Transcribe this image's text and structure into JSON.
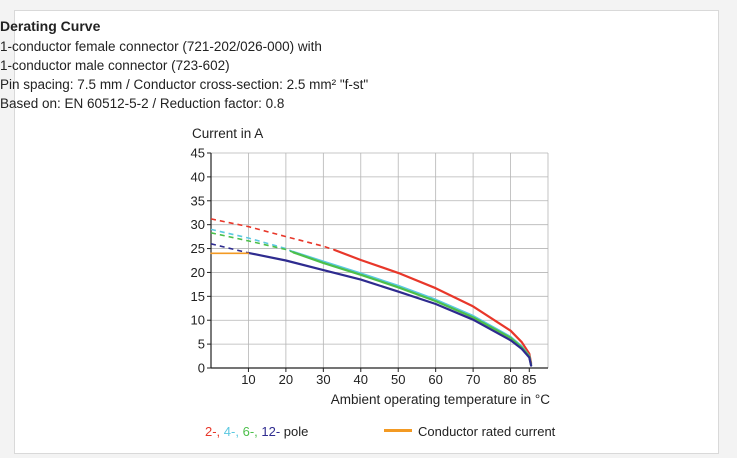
{
  "chart_data": {
    "type": "line",
    "title": "Derating Curve",
    "subtitle_lines": [
      "1-conductor female connector (721-202/026-000) with",
      "1-conductor male connector (723-602)",
      "Pin spacing: 7.5 mm / Conductor cross-section: 2.5 mm² \"f-st\"",
      "Based on: EN 60512-5-2 / Reduction factor: 0.8"
    ],
    "ylabel": "Current in A",
    "xlabel": "Ambient operating temperature in °C",
    "xlim": [
      0,
      90
    ],
    "ylim": [
      0,
      45
    ],
    "x_ticks": [
      10,
      20,
      30,
      40,
      50,
      60,
      70,
      80,
      85
    ],
    "y_ticks": [
      0,
      5,
      10,
      15,
      20,
      25,
      30,
      35,
      40,
      45
    ],
    "grid": true,
    "series": [
      {
        "name": "2-",
        "color": "#e8372a",
        "dashed": {
          "x": [
            0,
            10,
            20,
            30,
            33
          ],
          "y": [
            31.2,
            29.6,
            27.5,
            25.5,
            24.7
          ]
        },
        "x": [
          33,
          40,
          50,
          60,
          70,
          80,
          83,
          85,
          85.5
        ],
        "y": [
          24.7,
          22.6,
          19.9,
          16.7,
          12.9,
          7.8,
          5.4,
          3.0,
          1.0
        ]
      },
      {
        "name": "4-",
        "color": "#5bc8e0",
        "dashed": {
          "x": [
            0,
            10,
            20,
            22
          ],
          "y": [
            29.0,
            27.2,
            25.0,
            24.3
          ]
        },
        "x": [
          22,
          30,
          40,
          50,
          60,
          70,
          80,
          83,
          85,
          85.5
        ],
        "y": [
          24.3,
          22.3,
          19.8,
          17.2,
          14.3,
          10.9,
          6.5,
          4.5,
          2.5,
          0.6
        ]
      },
      {
        "name": "6-",
        "color": "#4cbf4a",
        "dashed": {
          "x": [
            0,
            10,
            20,
            22
          ],
          "y": [
            28.3,
            26.6,
            24.8,
            24.2
          ]
        },
        "x": [
          22,
          30,
          40,
          50,
          60,
          70,
          80,
          83,
          85,
          85.5
        ],
        "y": [
          24.2,
          22.0,
          19.5,
          16.9,
          14.0,
          10.6,
          6.3,
          4.3,
          2.4,
          0.6
        ]
      },
      {
        "name": "12-",
        "color": "#2e2b8f",
        "dashed": {
          "x": [
            0,
            10
          ],
          "y": [
            26.0,
            24.1
          ]
        },
        "x": [
          10,
          20,
          30,
          40,
          50,
          60,
          70,
          80,
          83,
          85,
          85.5
        ],
        "y": [
          24.1,
          22.5,
          20.5,
          18.5,
          16.0,
          13.4,
          10.1,
          5.8,
          4.0,
          2.2,
          0.5
        ]
      },
      {
        "name": "Conductor rated current",
        "color": "#f39a23",
        "x": [
          0,
          10
        ],
        "y": [
          24,
          24
        ]
      }
    ]
  },
  "legend": {
    "pole_items": [
      {
        "text": "2-, ",
        "color": "#e8372a"
      },
      {
        "text": "4-, ",
        "color": "#5bc8e0"
      },
      {
        "text": "6-, ",
        "color": "#4cbf4a"
      },
      {
        "text": "12-",
        "color": "#2e2b8f"
      }
    ],
    "pole_suffix": " pole",
    "rated_label": "Conductor rated current",
    "rated_color": "#f39a23"
  }
}
